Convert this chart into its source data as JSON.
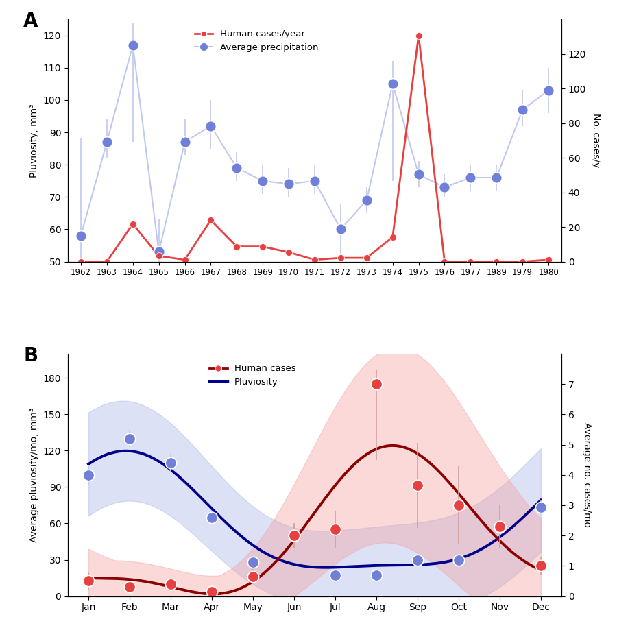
{
  "panel_A": {
    "years": [
      "1962",
      "1963",
      "1964",
      "1965",
      "1966",
      "1967",
      "1968",
      "1969",
      "1970",
      "1971",
      "1972",
      "1973",
      "1974",
      "1975",
      "1976",
      "1977",
      "1989",
      "1979",
      "1980"
    ],
    "pluviosity": [
      58,
      87,
      117,
      53,
      87,
      92,
      79,
      75,
      74,
      75,
      60,
      69,
      105,
      77,
      73,
      76,
      76,
      97,
      103
    ],
    "pluviosity_err_low": [
      8,
      5,
      30,
      10,
      4,
      7,
      4,
      4,
      4,
      4,
      13,
      4,
      30,
      4,
      3,
      4,
      4,
      5,
      7
    ],
    "pluviosity_err_high": [
      30,
      7,
      7,
      10,
      7,
      8,
      5,
      5,
      5,
      5,
      8,
      4,
      7,
      4,
      4,
      4,
      4,
      6,
      7
    ],
    "cases": [
      0,
      0,
      20,
      3,
      1,
      22,
      8,
      8,
      5,
      1,
      2,
      2,
      13,
      120,
      0,
      0,
      0,
      0,
      1
    ],
    "ylim_left": [
      50,
      125
    ],
    "ylim_right": [
      0,
      140
    ],
    "yticks_left": [
      50,
      60,
      70,
      80,
      90,
      100,
      110,
      120
    ],
    "yticks_right": [
      0,
      20,
      40,
      60,
      80,
      100,
      120
    ],
    "ylabel_left": "Pluviosity, mm³",
    "ylabel_right": "No. cases/y",
    "legend_cases": "Human cases/year",
    "legend_precip": "Average precipitation",
    "label_A": "A"
  },
  "panel_B": {
    "months": [
      1,
      2,
      3,
      4,
      5,
      6,
      7,
      8,
      9,
      10,
      11,
      12
    ],
    "month_labels": [
      "Jan",
      "Feb",
      "Mar",
      "Apr",
      "May",
      "Jun",
      "Jul",
      "Aug",
      "Sep",
      "Oct",
      "Nov",
      "Dec"
    ],
    "pluviosity_vals": [
      100,
      130,
      110,
      65,
      28,
      50,
      17,
      17,
      30,
      30,
      57,
      73
    ],
    "pluviosity_err": [
      8,
      7,
      8,
      5,
      3,
      5,
      3,
      3,
      4,
      4,
      5,
      6
    ],
    "cases_vals": [
      0.5,
      0.3,
      0.4,
      0.15,
      0.65,
      2.0,
      2.2,
      7.0,
      3.65,
      3.0,
      2.3,
      1.0
    ],
    "cases_err_low": [
      0.3,
      0.1,
      0.15,
      0.05,
      0.2,
      0.4,
      0.6,
      2.5,
      1.4,
      1.3,
      0.7,
      0.3
    ],
    "cases_err_high": [
      0.3,
      0.1,
      0.15,
      0.05,
      0.3,
      0.4,
      0.6,
      0.45,
      1.4,
      1.3,
      0.7,
      0.3
    ],
    "ylim_left": [
      0,
      200
    ],
    "ylim_right": [
      0,
      8.0
    ],
    "yticks_left": [
      0,
      30,
      60,
      90,
      120,
      150,
      180
    ],
    "yticks_right": [
      0,
      1,
      2,
      3,
      4,
      5,
      6,
      7
    ],
    "ylabel_left": "Average pluviosity/mo, mm³",
    "ylabel_right": "Average no. cases/mo",
    "legend_cases": "Human cases",
    "legend_pluviosity": "Pluviosity",
    "label_B": "B"
  },
  "colors": {
    "red_line": "#e84040",
    "red_dot": "#e84040",
    "blue_dot": "#7080d8",
    "blue_line_A": "#c0c8f0",
    "dark_red": "#8b0000",
    "dark_blue": "#00008b",
    "red_fill": "#f5a0a0",
    "blue_fill": "#a8b4e8"
  }
}
